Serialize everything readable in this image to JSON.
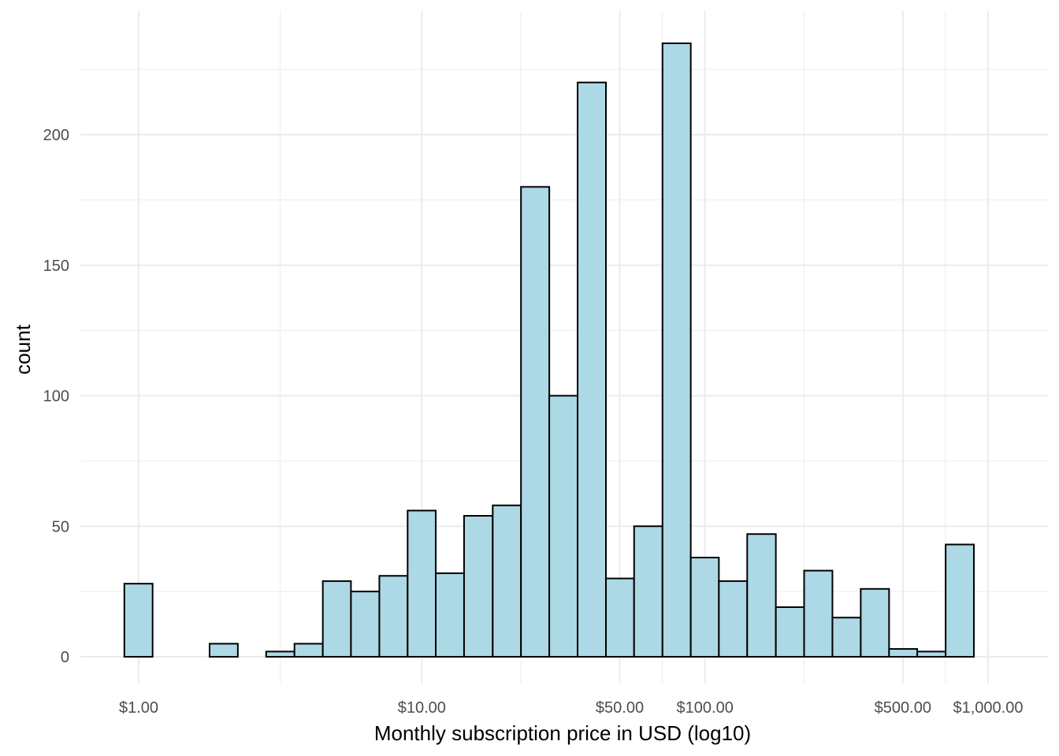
{
  "chart_data": {
    "type": "bar",
    "title": "",
    "xlabel": "Monthly subscription price in USD (log10)",
    "ylabel": "count",
    "x_scale": "log10",
    "xlim": [
      0.8,
      1250
    ],
    "ylim": [
      0,
      235
    ],
    "bin_width_log10": 0.1,
    "x_ticks": [
      {
        "value": 1,
        "label": "$1.00"
      },
      {
        "value": 10,
        "label": "$10.00"
      },
      {
        "value": 50,
        "label": "$50.00"
      },
      {
        "value": 100,
        "label": "$100.00"
      },
      {
        "value": 500,
        "label": "$500.00"
      },
      {
        "value": 1000,
        "label": "$1,000.00"
      }
    ],
    "y_ticks": [
      {
        "value": 0,
        "label": "0"
      },
      {
        "value": 50,
        "label": "50"
      },
      {
        "value": 100,
        "label": "100"
      },
      {
        "value": 150,
        "label": "150"
      },
      {
        "value": 200,
        "label": "200"
      }
    ],
    "bins": [
      {
        "x_from": 0.89,
        "x_to": 1.12,
        "count": 28
      },
      {
        "x_from": 1.12,
        "x_to": 1.41,
        "count": 0
      },
      {
        "x_from": 1.41,
        "x_to": 1.78,
        "count": 0
      },
      {
        "x_from": 1.78,
        "x_to": 2.24,
        "count": 5
      },
      {
        "x_from": 2.24,
        "x_to": 2.82,
        "count": 0
      },
      {
        "x_from": 2.82,
        "x_to": 3.55,
        "count": 2
      },
      {
        "x_from": 3.55,
        "x_to": 4.47,
        "count": 5
      },
      {
        "x_from": 4.47,
        "x_to": 5.62,
        "count": 29
      },
      {
        "x_from": 5.62,
        "x_to": 7.08,
        "count": 25
      },
      {
        "x_from": 7.08,
        "x_to": 8.91,
        "count": 31
      },
      {
        "x_from": 8.91,
        "x_to": 11.2,
        "count": 56
      },
      {
        "x_from": 11.2,
        "x_to": 14.1,
        "count": 32
      },
      {
        "x_from": 14.1,
        "x_to": 17.8,
        "count": 54
      },
      {
        "x_from": 17.8,
        "x_to": 22.4,
        "count": 58
      },
      {
        "x_from": 22.4,
        "x_to": 28.2,
        "count": 180
      },
      {
        "x_from": 28.2,
        "x_to": 35.5,
        "count": 100
      },
      {
        "x_from": 35.5,
        "x_to": 44.7,
        "count": 220
      },
      {
        "x_from": 44.7,
        "x_to": 56.2,
        "count": 30
      },
      {
        "x_from": 56.2,
        "x_to": 70.8,
        "count": 50
      },
      {
        "x_from": 70.8,
        "x_to": 89.1,
        "count": 235
      },
      {
        "x_from": 89.1,
        "x_to": 112,
        "count": 38
      },
      {
        "x_from": 112,
        "x_to": 141,
        "count": 29
      },
      {
        "x_from": 141,
        "x_to": 178,
        "count": 47
      },
      {
        "x_from": 178,
        "x_to": 224,
        "count": 19
      },
      {
        "x_from": 224,
        "x_to": 282,
        "count": 33
      },
      {
        "x_from": 282,
        "x_to": 355,
        "count": 15
      },
      {
        "x_from": 355,
        "x_to": 447,
        "count": 26
      },
      {
        "x_from": 447,
        "x_to": 562,
        "count": 3
      },
      {
        "x_from": 562,
        "x_to": 708,
        "count": 2
      },
      {
        "x_from": 708,
        "x_to": 891,
        "count": 43
      }
    ],
    "bar_fill": "#add8e6",
    "bar_stroke": "#000000",
    "grid": true,
    "grid_color": "#ebebeb",
    "legend": "none"
  }
}
